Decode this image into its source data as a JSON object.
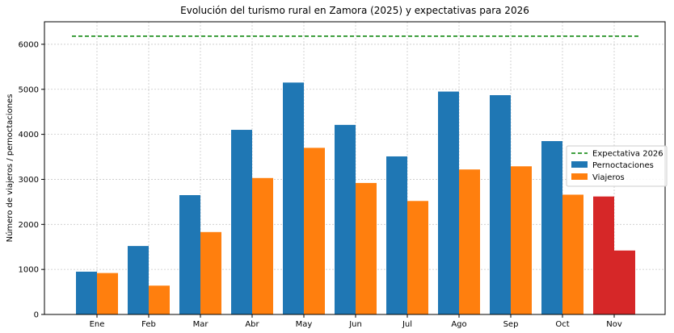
{
  "chart_data": {
    "type": "bar",
    "title": "Evolución del turismo rural en Zamora (2025) y expectativas para 2026",
    "xlabel": "",
    "ylabel": "Número de viajeros / pernoctaciones",
    "categories": [
      "Ene",
      "Feb",
      "Mar",
      "Abr",
      "May",
      "Jun",
      "Jul",
      "Ago",
      "Sep",
      "Oct",
      "Nov"
    ],
    "series": [
      {
        "name": "Pernoctaciones",
        "color": "#1f77b4",
        "values": [
          950,
          1520,
          2650,
          4100,
          5150,
          4210,
          3510,
          4950,
          4870,
          3850,
          2620
        ]
      },
      {
        "name": "Viajeros",
        "color": "#ff7f0e",
        "values": [
          920,
          640,
          1830,
          3030,
          3700,
          2920,
          2520,
          3220,
          3290,
          2660,
          1420
        ]
      }
    ],
    "highlight": {
      "category": "Nov",
      "color": "#d62728"
    },
    "reference_line": {
      "name": "Expectativa 2026",
      "value": 6180,
      "color": "#008000",
      "style": "dashed"
    },
    "ylim": [
      0,
      6500
    ],
    "yticks": [
      0,
      1000,
      2000,
      3000,
      4000,
      5000,
      6000
    ],
    "grid": true,
    "legend_position": "center-right"
  }
}
